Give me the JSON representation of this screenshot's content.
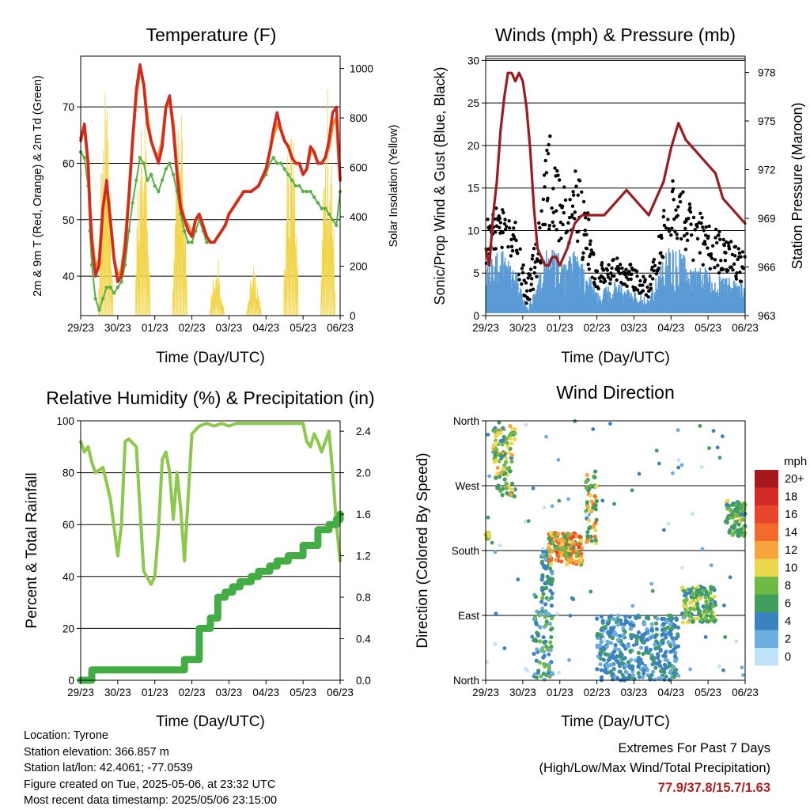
{
  "panels": {
    "temperature": {
      "title": "Temperature (F)",
      "xlabel": "Time (Day/UTC)",
      "ylabel_left": "2m & 9m T (Red, Orange) & 2m Td (Green)",
      "ylabel_right": "Solar Insolation (Yellow)"
    },
    "winds": {
      "title": "Winds (mph) & Pressure (mb)",
      "xlabel": "Time (Day/UTC)",
      "ylabel_left": "Sonic/Prop Wind & Gust (Blue, Black)",
      "ylabel_right": "Station Pressure (Maroon)"
    },
    "humidity": {
      "title": "Relative Humidity (%) & Precipitation (in)",
      "xlabel": "Time (Day/UTC)",
      "ylabel_left": "Percent & Total Rainfall"
    },
    "direction": {
      "title": "Wind Direction",
      "xlabel": "Time (Day/UTC)",
      "ylabel_left": "Direction (Colored By Speed)"
    }
  },
  "x_ticks": [
    "29/23",
    "30/23",
    "01/23",
    "02/23",
    "03/23",
    "04/23",
    "05/23",
    "06/23"
  ],
  "colorbar": {
    "unit": "mph",
    "labels": [
      "20+",
      "18",
      "16",
      "14",
      "12",
      "10",
      "8",
      "6",
      "4",
      "2",
      "0"
    ],
    "colors": [
      "#a5181c",
      "#d42a26",
      "#e8452a",
      "#f26b2b",
      "#f8a43c",
      "#ebd84a",
      "#6fba44",
      "#3f9e5b",
      "#3b82c0",
      "#6baee0",
      "#c0e3f7"
    ]
  },
  "footer": {
    "location": "Location: Tyrone",
    "elevation": "Station elevation: 366.857 m",
    "latlon": "Station lat/lon: 42.4061; -77.0539",
    "created": "Figure created on Tue, 2025-05-06, at 23:32 UTC",
    "recent": "Most recent data timestamp: 2025/05/06 23:15:00",
    "extremes_title": "Extremes For Past 7 Days",
    "extremes_sub": "(High/Low/Max Wind/Total Precipitation)",
    "extremes_value": "77.9/37.8/15.7/1.63"
  },
  "chart_data": [
    {
      "type": "line",
      "title": "Temperature (F)",
      "x": [
        0,
        0.1,
        0.2,
        0.25,
        0.3,
        0.4,
        0.5,
        0.6,
        0.7,
        0.8,
        0.9,
        1.0,
        1.1,
        1.2,
        1.3,
        1.4,
        1.5,
        1.6,
        1.7,
        1.8,
        1.9,
        2.0,
        2.1,
        2.2,
        2.3,
        2.4,
        2.5,
        2.6,
        2.7,
        2.8,
        2.9,
        3.0,
        3.1,
        3.2,
        3.3,
        3.4,
        3.5,
        3.6,
        3.7,
        3.8,
        3.9,
        4.0,
        4.2,
        4.4,
        4.6,
        4.8,
        5.0,
        5.1,
        5.2,
        5.3,
        5.4,
        5.5,
        5.6,
        5.7,
        5.8,
        5.9,
        6.0,
        6.1,
        6.2,
        6.3,
        6.4,
        6.5,
        6.6,
        6.7,
        6.8,
        6.9,
        7.0
      ],
      "series": [
        {
          "name": "2m T",
          "color": "#d22a22",
          "values": [
            64,
            67,
            60,
            52,
            46,
            40,
            42,
            52,
            57,
            50,
            43,
            39,
            40,
            45,
            54,
            64,
            73,
            77.5,
            74,
            67,
            64,
            62,
            60,
            63,
            70,
            72,
            66,
            58,
            52,
            50,
            48,
            47,
            50,
            51,
            49,
            47,
            46,
            46,
            47,
            48,
            49,
            51,
            53,
            55,
            55,
            56,
            59,
            62,
            66,
            69,
            66,
            64,
            63,
            61,
            60,
            60,
            58,
            59,
            63,
            62,
            60,
            60,
            61,
            64,
            69,
            70,
            57
          ]
        },
        {
          "name": "9m T",
          "color": "#f39129",
          "values": [
            64.5,
            66.5,
            60,
            52,
            47,
            41,
            43,
            52,
            56,
            50,
            43,
            40,
            41,
            46,
            54,
            64,
            72,
            77,
            74,
            68,
            64,
            62,
            61,
            64,
            70,
            71,
            67,
            59,
            53,
            50,
            49,
            47,
            50,
            51,
            49,
            47,
            46,
            46,
            47,
            48,
            49,
            51,
            53,
            55,
            55,
            56,
            59,
            62,
            65,
            67,
            66,
            64,
            63,
            61,
            60,
            60,
            58,
            59,
            62,
            62,
            60,
            60,
            61,
            63,
            67,
            68,
            57
          ]
        },
        {
          "name": "2m Td",
          "color": "#58b044",
          "values": [
            62,
            61,
            56,
            48,
            42,
            36,
            34,
            36,
            38,
            38,
            37,
            38,
            39,
            42,
            48,
            53,
            57,
            61,
            60,
            57,
            58,
            56,
            55,
            57,
            59,
            60,
            58,
            55,
            51,
            48,
            46,
            46,
            48,
            50,
            48,
            46,
            46,
            46,
            47,
            48,
            49,
            51,
            53,
            55,
            55,
            56,
            58,
            60,
            61,
            60,
            60,
            59,
            58,
            57,
            56,
            56,
            55,
            55,
            55,
            54,
            53,
            52,
            52,
            51,
            50,
            49,
            55
          ]
        }
      ],
      "xlabel": "Time (Day/UTC)",
      "ylabel": "2m & 9m T (Red, Orange) & 2m Td (Green)",
      "y2label": "Solar Insolation (Yellow)",
      "ylim": [
        33,
        79
      ],
      "yticks": [
        40,
        50,
        60,
        70
      ],
      "y2lim": [
        0,
        1000
      ],
      "y2ticks": [
        0,
        200,
        400,
        600,
        800,
        1000
      ],
      "grid": true
    },
    {
      "type": "scatter",
      "title": "Winds (mph) & Pressure (mb)",
      "series": [
        {
          "name": "Wind",
          "color": "#4f92d0"
        },
        {
          "name": "Gust",
          "color": "#000000"
        },
        {
          "name": "Pressure",
          "color": "#9b1c20",
          "x": [
            0,
            0.1,
            0.2,
            0.3,
            0.4,
            0.5,
            0.6,
            0.7,
            0.8,
            0.9,
            1.0,
            1.1,
            1.2,
            1.3,
            1.4,
            1.5,
            1.6,
            1.7,
            1.8,
            1.9,
            2.0,
            2.2,
            2.4,
            2.6,
            2.8,
            3.0,
            3.2,
            3.4,
            3.6,
            3.8,
            4.0,
            4.2,
            4.4,
            4.6,
            4.8,
            5.0,
            5.2,
            5.4,
            5.6,
            5.8,
            6.0,
            6.2,
            6.4,
            6.6,
            6.8,
            7.0
          ],
          "values": [
            967,
            966,
            969,
            971,
            974,
            976,
            977.5,
            977.5,
            977,
            977.5,
            977,
            975.5,
            973,
            969.5,
            967,
            966.5,
            966,
            966,
            966.5,
            966.5,
            966,
            967,
            968.5,
            969,
            969,
            969,
            969,
            969.5,
            970,
            970.5,
            970,
            969.5,
            969,
            970,
            971,
            973,
            974.5,
            973.5,
            973,
            972.5,
            972,
            971.5,
            970,
            969.5,
            969,
            968.5
          ]
        }
      ],
      "xlabel": "Time (Day/UTC)",
      "ylabel": "Sonic/Prop Wind & Gust (Blue, Black)",
      "y2label": "Station Pressure (Maroon)",
      "ylim": [
        0,
        30
      ],
      "yticks": [
        0,
        5,
        10,
        15,
        20,
        25,
        30
      ],
      "y2lim": [
        963,
        978
      ],
      "y2ticks": [
        963,
        966,
        969,
        972,
        975,
        978
      ],
      "grid": true
    },
    {
      "type": "line",
      "title": "Relative Humidity (%) & Precipitation (in)",
      "series": [
        {
          "name": "Relative Humidity",
          "color": "#8cc84b",
          "x": [
            0,
            0.1,
            0.2,
            0.3,
            0.4,
            0.6,
            0.8,
            1.0,
            1.1,
            1.2,
            1.3,
            1.5,
            1.7,
            1.9,
            2.0,
            2.1,
            2.2,
            2.3,
            2.4,
            2.5,
            2.6,
            2.7,
            2.8,
            3.0,
            3.2,
            3.4,
            3.6,
            3.8,
            4.0,
            4.2,
            4.4,
            4.6,
            4.8,
            5.0,
            5.2,
            5.4,
            5.6,
            5.8,
            6.0,
            6.1,
            6.2,
            6.3,
            6.4,
            6.5,
            6.6,
            6.7,
            6.8,
            6.9,
            7.0
          ],
          "values": [
            92,
            88,
            90,
            84,
            80,
            82,
            70,
            48,
            60,
            92,
            93,
            90,
            42,
            37,
            40,
            58,
            85,
            88,
            80,
            62,
            80,
            66,
            46,
            95,
            98,
            99,
            98,
            99,
            98,
            99,
            99,
            99,
            99,
            99,
            99,
            99,
            99,
            99,
            99,
            92,
            90,
            95,
            92,
            88,
            92,
            96,
            80,
            60,
            46
          ]
        },
        {
          "name": "Total Rainfall",
          "color": "#44ac44",
          "x": [
            0,
            0.3,
            0.8,
            1.5,
            2.2,
            2.8,
            3.2,
            3.5,
            3.7,
            3.9,
            4.1,
            4.3,
            4.6,
            4.8,
            5.1,
            5.3,
            5.6,
            6.0,
            6.2,
            6.4,
            6.7,
            6.9,
            7.0
          ],
          "values": [
            0.0,
            0.1,
            0.1,
            0.1,
            0.1,
            0.2,
            0.5,
            0.6,
            0.8,
            0.85,
            0.9,
            0.95,
            1.0,
            1.05,
            1.1,
            1.15,
            1.2,
            1.3,
            1.3,
            1.45,
            1.5,
            1.55,
            1.6
          ]
        }
      ],
      "xlabel": "Time (Day/UTC)",
      "ylabel": "Percent & Total Rainfall",
      "ylim": [
        0,
        100
      ],
      "yticks": [
        0,
        20,
        40,
        60,
        80,
        100
      ],
      "y2lim": [
        0,
        2.5
      ],
      "y2ticks": [
        0.0,
        0.4,
        0.8,
        1.2,
        1.6,
        2.0,
        2.4
      ],
      "grid": true
    },
    {
      "type": "scatter",
      "title": "Wind Direction",
      "xlabel": "Time (Day/UTC)",
      "ylabel": "Direction (Colored By Speed)",
      "ylim": [
        0,
        360
      ],
      "yticks": [
        "North",
        "East",
        "South",
        "West",
        "North"
      ],
      "clusters": [
        {
          "x": [
            0.0,
            0.1
          ],
          "dir": [
            195,
            205
          ],
          "speed": [
            8,
            12
          ]
        },
        {
          "x": [
            0.2,
            0.8
          ],
          "dir": [
            255,
            360
          ],
          "speed": [
            4,
            12
          ]
        },
        {
          "x": [
            1.3,
            1.8
          ],
          "dir": [
            0,
            120
          ],
          "speed": [
            2,
            8
          ]
        },
        {
          "x": [
            1.5,
            1.8
          ],
          "dir": [
            120,
            180
          ],
          "speed": [
            2,
            6
          ]
        },
        {
          "x": [
            1.7,
            2.6
          ],
          "dir": [
            160,
            205
          ],
          "speed": [
            6,
            16
          ]
        },
        {
          "x": [
            2.7,
            3.0
          ],
          "dir": [
            190,
            290
          ],
          "speed": [
            4,
            14
          ]
        },
        {
          "x": [
            3.0,
            5.2
          ],
          "dir": [
            0,
            90
          ],
          "speed": [
            2,
            6
          ]
        },
        {
          "x": [
            5.3,
            6.2
          ],
          "dir": [
            80,
            130
          ],
          "speed": [
            4,
            10
          ]
        },
        {
          "x": [
            6.5,
            7.0
          ],
          "dir": [
            200,
            250
          ],
          "speed": [
            4,
            10
          ]
        }
      ]
    }
  ]
}
